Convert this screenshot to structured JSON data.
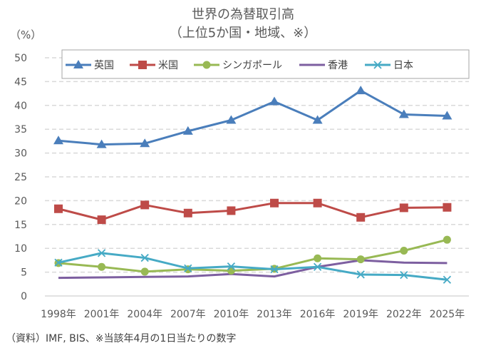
{
  "chart_data": {
    "type": "line",
    "title": "世界の為替取引高",
    "subtitle": "（上位5か国・地域、※）",
    "ylabel": "（%）",
    "xlabel": "",
    "ylim": [
      0,
      50
    ],
    "yticks": [
      0,
      5,
      10,
      15,
      20,
      25,
      30,
      35,
      40,
      45,
      50
    ],
    "grid": true,
    "legend_position": "top",
    "categories": [
      "1998年",
      "2001年",
      "2004年",
      "2007年",
      "2010年",
      "2013年",
      "2016年",
      "2019年",
      "2022年",
      "2025年"
    ],
    "series": [
      {
        "name": "英国",
        "color": "#4a7ebb",
        "marker": "triangle",
        "values": [
          32.6,
          31.8,
          32.0,
          34.6,
          36.9,
          40.8,
          36.9,
          43.1,
          38.1,
          37.8
        ]
      },
      {
        "name": "米国",
        "color": "#be4b48",
        "marker": "square",
        "values": [
          18.3,
          16.0,
          19.1,
          17.4,
          17.9,
          19.5,
          19.5,
          16.5,
          18.5,
          18.6
        ]
      },
      {
        "name": "シンガポール",
        "color": "#98b954",
        "marker": "circle",
        "values": [
          6.9,
          6.1,
          5.1,
          5.6,
          5.3,
          5.7,
          7.9,
          7.7,
          9.5,
          11.8
        ]
      },
      {
        "name": "香港",
        "color": "#7d5fa0",
        "marker": "none",
        "values": [
          3.8,
          3.9,
          4.0,
          4.1,
          4.6,
          4.1,
          6.1,
          7.5,
          7.0,
          6.9
        ]
      },
      {
        "name": "日本",
        "color": "#46aac5",
        "marker": "x",
        "values": [
          7.0,
          9.0,
          8.0,
          5.8,
          6.2,
          5.6,
          6.1,
          4.5,
          4.4,
          3.4
        ]
      }
    ],
    "source_note": "（資料）IMF, BIS、※当該年4月の1日当たりの数字"
  }
}
